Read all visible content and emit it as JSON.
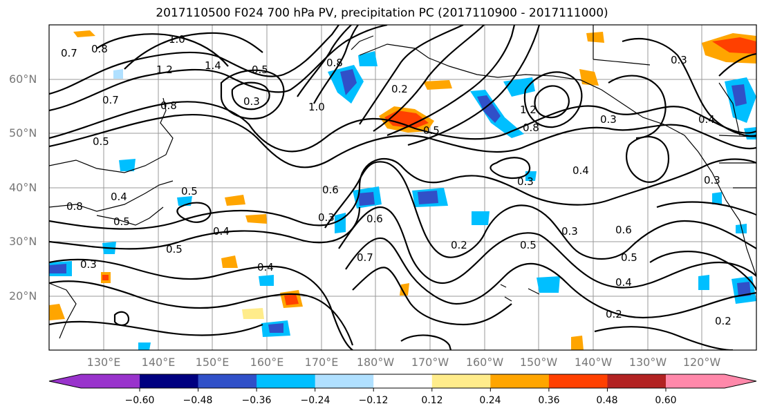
{
  "title": "2017110500 F024 700 hPa PV, precipitation PC (2017110900 - 2017111000)",
  "map": {
    "lat_labels": [
      "60°N",
      "50°N",
      "40°N",
      "30°N",
      "20°N"
    ],
    "lon_labels": [
      "130°E",
      "140°E",
      "150°E",
      "160°E",
      "170°E",
      "180°W",
      "170°W",
      "160°W",
      "150°W",
      "140°W",
      "130°W",
      "120°W"
    ],
    "contour_labels": [
      "0.7",
      "0.8",
      "1.0",
      "1.2",
      "1.4",
      "0.5",
      "0.3",
      "1.0",
      "0.8",
      "0.2",
      "0.5",
      "1.2",
      "0.8",
      "0.3",
      "0.4",
      "0.5",
      "0.7",
      "0.8",
      "0.5",
      "0.4",
      "0.5",
      "0.8",
      "0.3",
      "0.4",
      "0.3",
      "0.5",
      "0.6",
      "0.3",
      "0.6",
      "0.7",
      "0.2",
      "0.5",
      "0.4",
      "0.3",
      "0.6",
      "0.4",
      "0.2",
      "0.3",
      "0.4",
      "0.5",
      "0.2",
      "0.3"
    ]
  },
  "colorbar": {
    "colors": [
      "#9933cc",
      "#000080",
      "#3050c8",
      "#00bfff",
      "#b0e0ff",
      "#ffffff",
      "#ffec8b",
      "#ffa500",
      "#ff4000",
      "#b22222",
      "#ff88aa"
    ],
    "ticks": [
      "−0.60",
      "−0.48",
      "−0.36",
      "−0.24",
      "−0.12",
      "0.12",
      "0.24",
      "0.36",
      "0.48",
      "0.60"
    ]
  }
}
